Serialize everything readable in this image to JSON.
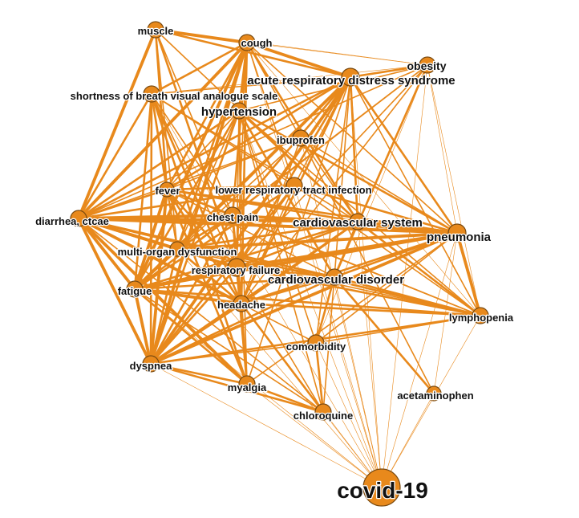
{
  "graph": {
    "nodes": [
      {
        "id": "muscle",
        "label": "muscle"
      },
      {
        "id": "cough",
        "label": "cough"
      },
      {
        "id": "obesity",
        "label": "obesity"
      },
      {
        "id": "ards",
        "label": "acute respiratory distress syndrome"
      },
      {
        "id": "sob",
        "label": "shortness of breath visual analogue scale"
      },
      {
        "id": "hypertension",
        "label": "hypertension"
      },
      {
        "id": "ibuprofen",
        "label": "ibuprofen"
      },
      {
        "id": "fever",
        "label": "fever"
      },
      {
        "id": "lrti",
        "label": "lower respiratory tract infection"
      },
      {
        "id": "diarrhea",
        "label": "diarrhea, ctcae"
      },
      {
        "id": "chestpain",
        "label": "chest pain"
      },
      {
        "id": "cvsystem",
        "label": "cardiovascular system"
      },
      {
        "id": "pneumonia",
        "label": "pneumonia"
      },
      {
        "id": "mod",
        "label": "multi-organ dysfunction"
      },
      {
        "id": "respfail",
        "label": "respiratory failure"
      },
      {
        "id": "cvdisorder",
        "label": "cardiovascular disorder"
      },
      {
        "id": "fatigue",
        "label": "fatigue"
      },
      {
        "id": "headache",
        "label": "headache"
      },
      {
        "id": "lymphopenia",
        "label": "lymphopenia"
      },
      {
        "id": "comorbidity",
        "label": "comorbidity"
      },
      {
        "id": "dyspnea",
        "label": "dyspnea"
      },
      {
        "id": "myalgia",
        "label": "myalgia"
      },
      {
        "id": "acetaminophen",
        "label": "acetaminophen"
      },
      {
        "id": "chloroquine",
        "label": "chloroquine"
      },
      {
        "id": "covid",
        "label": "covid-19"
      }
    ],
    "node_color": "#e8891c",
    "edge_color": "#e8891c"
  }
}
